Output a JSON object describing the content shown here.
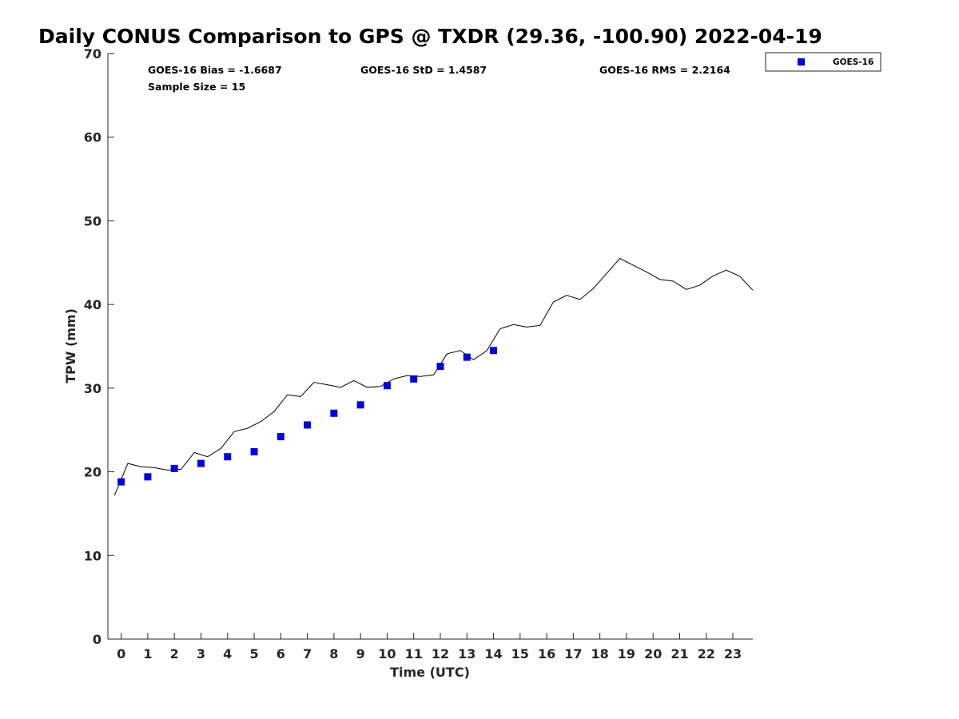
{
  "chart_data": {
    "type": "scatter",
    "title": "Daily CONUS Comparison to GPS @ TXDR (29.36, -100.90) 2022-04-19",
    "xlabel": "Time (UTC)",
    "ylabel": "TPW (mm)",
    "xlim": [
      -0.5,
      23.75
    ],
    "ylim": [
      0,
      70
    ],
    "xticks": [
      "0",
      "1",
      "2",
      "3",
      "4",
      "5",
      "6",
      "7",
      "8",
      "9",
      "10",
      "11",
      "12",
      "13",
      "14",
      "15",
      "16",
      "17",
      "18",
      "19",
      "20",
      "21",
      "22",
      "23"
    ],
    "yticks": [
      "0",
      "10",
      "20",
      "30",
      "40",
      "50",
      "60",
      "70"
    ],
    "grid": false,
    "legend_position": "top-right, outside plot",
    "stats": {
      "bias": "GOES-16 Bias = -1.6687",
      "std": "GOES-16 StD = 1.4587",
      "rms": "GOES-16 RMS = 2.2164",
      "sample": "Sample Size = 15"
    },
    "series": [
      {
        "name": "GOES-16",
        "kind": "scatter",
        "marker": "square",
        "color": "#0000dd",
        "x": [
          0,
          1,
          2,
          3,
          4,
          5,
          6,
          7,
          8,
          9,
          10,
          11,
          12,
          13,
          14
        ],
        "y": [
          18.8,
          19.4,
          20.4,
          21.0,
          21.8,
          22.4,
          24.2,
          25.6,
          27.0,
          28.0,
          30.3,
          31.1,
          32.6,
          33.7,
          34.5
        ]
      },
      {
        "kind": "line",
        "color": "#000000",
        "x": [
          -0.25,
          0.25,
          0.75,
          1.25,
          1.75,
          2.25,
          2.75,
          3.25,
          3.75,
          4.25,
          4.75,
          5.25,
          5.75,
          6.25,
          6.75,
          7.25,
          7.75,
          8.25,
          8.75,
          9.25,
          9.75,
          10.25,
          10.75,
          11.25,
          11.75,
          12.25,
          12.75,
          13.25,
          13.75,
          14.25,
          14.75,
          15.25,
          15.75,
          16.25,
          16.75,
          17.25,
          17.75,
          18.25,
          18.75,
          19.25,
          19.75,
          20.25,
          20.75,
          21.25,
          21.75,
          22.25,
          22.75,
          23.25,
          23.75
        ],
        "y": [
          17.2,
          21.0,
          20.6,
          20.5,
          20.2,
          20.3,
          22.3,
          21.8,
          22.8,
          24.8,
          25.2,
          26.0,
          27.2,
          29.2,
          29.0,
          30.7,
          30.4,
          30.1,
          30.9,
          30.1,
          30.2,
          31.1,
          31.5,
          31.4,
          31.6,
          34.1,
          34.5,
          33.4,
          34.5,
          37.1,
          37.6,
          37.3,
          37.5,
          40.3,
          41.1,
          40.6,
          41.9,
          43.7,
          45.5,
          44.7,
          43.9,
          43.0,
          42.8,
          41.8,
          42.3,
          43.4,
          44.1,
          43.4,
          41.7
        ]
      }
    ]
  }
}
